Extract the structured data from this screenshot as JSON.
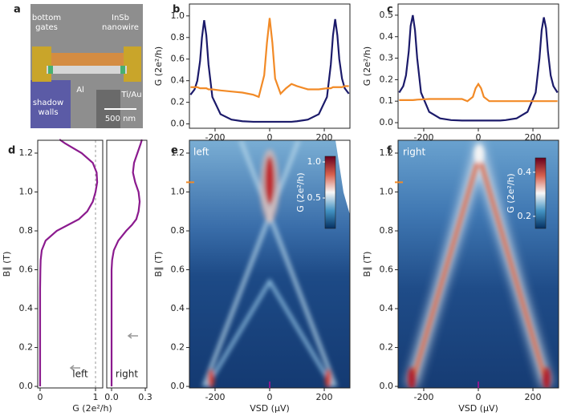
{
  "panel_a": {
    "label": "a",
    "annotations": [
      [
        "bottom",
        "gates"
      ],
      [
        "InSb",
        "nanowire"
      ],
      [
        "Al"
      ],
      [
        "Ti/Au"
      ],
      [
        "shadow",
        "walls"
      ],
      [
        "500 nm"
      ]
    ]
  },
  "chart_data": [
    {
      "type": "line",
      "panel": "b",
      "ylabel": "G (2e²/h)",
      "x": [
        -290,
        -275,
        -265,
        -255,
        -248,
        -240,
        -232,
        -224,
        -210,
        -180,
        -140,
        -100,
        -60,
        -40,
        -20,
        -10,
        0,
        10,
        20,
        40,
        60,
        80,
        100,
        140,
        180,
        210,
        224,
        232,
        240,
        248,
        255,
        265,
        275,
        290
      ],
      "series": [
        {
          "color": "#1b1a6a",
          "values": [
            0.27,
            0.32,
            0.4,
            0.58,
            0.8,
            0.96,
            0.82,
            0.55,
            0.25,
            0.09,
            0.04,
            0.025,
            0.02,
            0.02,
            0.02,
            0.02,
            0.02,
            0.02,
            0.02,
            0.02,
            0.02,
            0.02,
            0.025,
            0.04,
            0.09,
            0.25,
            0.55,
            0.82,
            0.97,
            0.82,
            0.6,
            0.42,
            0.33,
            0.28
          ]
        },
        {
          "color": "#f28a26",
          "values": [
            0.34,
            0.34,
            0.34,
            0.33,
            0.33,
            0.33,
            0.33,
            0.32,
            0.32,
            0.31,
            0.3,
            0.29,
            0.27,
            0.25,
            0.45,
            0.75,
            0.98,
            0.75,
            0.42,
            0.28,
            0.33,
            0.37,
            0.35,
            0.32,
            0.32,
            0.33,
            0.33,
            0.34,
            0.34,
            0.34,
            0.34,
            0.34,
            0.35,
            0.35
          ]
        }
      ],
      "xlim": [
        -294,
        294
      ],
      "ylim": [
        -0.04,
        1.11
      ],
      "xticks": [
        -200,
        0,
        200
      ],
      "yticks": [
        {
          "value": 0,
          "label": "0.0"
        },
        0.2,
        0.4,
        0.6,
        0.8,
        {
          "value": 1,
          "label": "1.0"
        }
      ]
    },
    {
      "type": "line",
      "panel": "c",
      "ylabel": "G (2e²/h)",
      "x": [
        -290,
        -275,
        -265,
        -255,
        -248,
        -240,
        -232,
        -224,
        -210,
        -180,
        -140,
        -100,
        -60,
        -40,
        -20,
        -10,
        0,
        10,
        20,
        40,
        60,
        80,
        100,
        140,
        180,
        210,
        224,
        232,
        240,
        248,
        255,
        265,
        275,
        290
      ],
      "series": [
        {
          "color": "#1b1a6a",
          "values": [
            0.14,
            0.17,
            0.22,
            0.33,
            0.45,
            0.5,
            0.43,
            0.3,
            0.14,
            0.05,
            0.02,
            0.012,
            0.01,
            0.01,
            0.01,
            0.01,
            0.01,
            0.01,
            0.01,
            0.01,
            0.01,
            0.01,
            0.012,
            0.02,
            0.05,
            0.14,
            0.3,
            0.43,
            0.49,
            0.44,
            0.33,
            0.22,
            0.17,
            0.14
          ]
        },
        {
          "color": "#f28a26",
          "values": [
            0.105,
            0.105,
            0.105,
            0.105,
            0.105,
            0.105,
            0.106,
            0.107,
            0.108,
            0.11,
            0.11,
            0.11,
            0.11,
            0.1,
            0.12,
            0.16,
            0.18,
            0.16,
            0.12,
            0.1,
            0.1,
            0.1,
            0.1,
            0.1,
            0.1,
            0.1,
            0.1,
            0.1,
            0.1,
            0.1,
            0.1,
            0.1,
            0.1,
            0.1
          ]
        }
      ],
      "xlim": [
        -294,
        294
      ],
      "ylim": [
        -0.026,
        0.552
      ],
      "xticks": [
        -200,
        0,
        200
      ],
      "yticks": [
        {
          "value": 0,
          "label": "0.0"
        },
        0.1,
        0.2,
        0.3,
        0.4,
        0.5
      ]
    },
    {
      "type": "line",
      "panel": "d",
      "swap_axes": true,
      "xlabel": "G (2e²/h)",
      "ylabel": "B∥ (T)",
      "annotation": "left",
      "ref_x": 1,
      "y": [
        0,
        0.2,
        0.4,
        0.5,
        0.6,
        0.65,
        0.7,
        0.75,
        0.8,
        0.83,
        0.86,
        0.9,
        0.95,
        1.0,
        1.05,
        1.1,
        1.15,
        1.2,
        1.25,
        1.27
      ],
      "series": [
        {
          "color": "#8b1a8e",
          "values": [
            0,
            0,
            0,
            0,
            0.005,
            0.01,
            0.03,
            0.1,
            0.3,
            0.5,
            0.7,
            0.85,
            0.95,
            1.0,
            1.03,
            1.02,
            0.95,
            0.75,
            0.45,
            0.35
          ]
        }
      ],
      "xlim": [
        -0.043,
        1.13
      ],
      "ylim": [
        -0.008,
        1.266
      ],
      "xticks": [
        0,
        1
      ],
      "yticks": [
        {
          "value": 0,
          "label": "0.0"
        },
        0.2,
        0.4,
        0.6,
        0.8,
        {
          "value": 1,
          "label": "1.0"
        },
        1.2
      ]
    },
    {
      "type": "line",
      "swap_axes": true,
      "annotation": "right",
      "y": [
        0,
        0.2,
        0.4,
        0.5,
        0.6,
        0.65,
        0.7,
        0.75,
        0.8,
        0.83,
        0.86,
        0.9,
        0.95,
        1.0,
        1.05,
        1.1,
        1.15,
        1.2,
        1.25,
        1.27
      ],
      "series": [
        {
          "color": "#8b1a8e",
          "values": [
            0,
            0,
            0,
            0,
            0,
            0.005,
            0.02,
            0.06,
            0.13,
            0.18,
            0.22,
            0.24,
            0.25,
            0.24,
            0.21,
            0.19,
            0.2,
            0.23,
            0.26,
            0.27
          ]
        }
      ],
      "xlim": [
        -0.043,
        0.314
      ],
      "ylim": [
        -0.008,
        1.266
      ],
      "xticks": [
        {
          "value": 0,
          "label": "0.0"
        },
        0.3
      ]
    },
    {
      "type": "heatmap",
      "panel": "e",
      "xlabel": "VSD (μV)",
      "ylabel": "B∥ (T)",
      "annotation": "left",
      "xlim": [
        -294,
        294
      ],
      "ylim": [
        -0.008,
        1.266
      ],
      "xticks": [
        -200,
        0,
        200
      ],
      "yticks": [
        {
          "value": 0,
          "label": "0.0"
        },
        0.2,
        0.4,
        0.6,
        0.8,
        {
          "value": 1,
          "label": "1.0"
        },
        1.2
      ],
      "clabel": "G (2e²/h)",
      "clim": [
        0.078,
        1.078
      ],
      "cticks": [
        0.5,
        {
          "value": 1,
          "label": "1.0"
        }
      ],
      "marker_y": 1.05,
      "marker_x": 0
    },
    {
      "type": "heatmap",
      "panel": "f",
      "xlabel": "VSD (μV)",
      "ylabel": "B∥ (T)",
      "annotation": "right",
      "xlim": [
        -294,
        294
      ],
      "ylim": [
        -0.008,
        1.266
      ],
      "xticks": [
        -200,
        0,
        200
      ],
      "yticks": [
        {
          "value": 0,
          "label": "0.0"
        },
        0.2,
        0.4,
        0.6,
        0.8,
        {
          "value": 1,
          "label": "1.0"
        },
        1.2
      ],
      "clabel": "G (2e²/h)",
      "clim": [
        0.145,
        0.465
      ],
      "cticks": [
        0.2,
        0.4
      ],
      "marker_y": 1.05,
      "marker_x": 0
    }
  ]
}
